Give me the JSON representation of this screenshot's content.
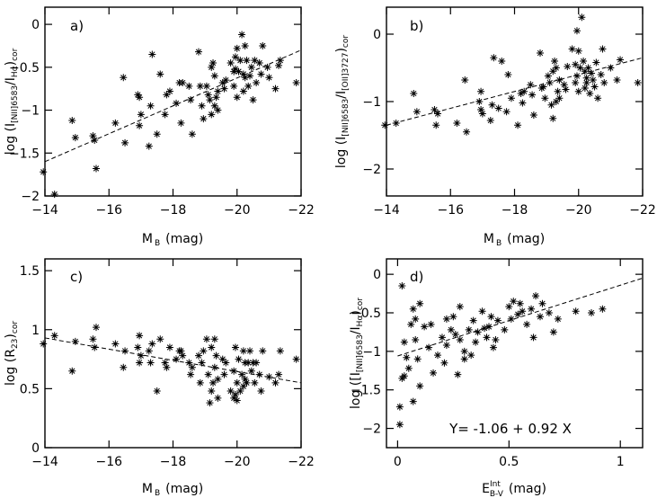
{
  "chart_data": [
    {
      "id": "a",
      "type": "scatter",
      "panel_label": "a)",
      "xlabel": "M_B (mag)",
      "ylabel": "log (I[NII]6583/IHα)cor",
      "xlim": [
        -14,
        -22
      ],
      "ylim": [
        -2,
        0.2
      ],
      "xticks": [
        -14,
        -16,
        -18,
        -20,
        -22
      ],
      "yticks": [
        0,
        -0.5,
        -1,
        -1.5,
        -2
      ],
      "fit_line": [
        [
          -14,
          -1.6
        ],
        [
          -22,
          -0.3
        ]
      ],
      "points": [
        [
          -13.95,
          -1.72
        ],
        [
          -14.3,
          -1.98
        ],
        [
          -14.85,
          -1.12
        ],
        [
          -14.95,
          -1.32
        ],
        [
          -15.5,
          -1.3
        ],
        [
          -15.55,
          -1.35
        ],
        [
          -15.6,
          -1.68
        ],
        [
          -16.2,
          -1.15
        ],
        [
          -16.45,
          -0.62
        ],
        [
          -16.5,
          -1.38
        ],
        [
          -16.9,
          -0.82
        ],
        [
          -16.95,
          -0.85
        ],
        [
          -16.95,
          -1.18
        ],
        [
          -17.0,
          -1.05
        ],
        [
          -17.3,
          -0.95
        ],
        [
          -17.25,
          -1.42
        ],
        [
          -17.35,
          -0.35
        ],
        [
          -17.5,
          -1.28
        ],
        [
          -17.6,
          -0.58
        ],
        [
          -17.75,
          -1.05
        ],
        [
          -17.8,
          -0.82
        ],
        [
          -17.9,
          -0.78
        ],
        [
          -18.1,
          -0.92
        ],
        [
          -18.2,
          -0.68
        ],
        [
          -18.25,
          -1.15
        ],
        [
          -18.3,
          -0.68
        ],
        [
          -18.5,
          -0.72
        ],
        [
          -18.55,
          -0.88
        ],
        [
          -18.6,
          -1.28
        ],
        [
          -18.8,
          -0.32
        ],
        [
          -18.85,
          -0.72
        ],
        [
          -18.9,
          -0.95
        ],
        [
          -18.95,
          -1.1
        ],
        [
          -19.05,
          -0.72
        ],
        [
          -19.1,
          -0.82
        ],
        [
          -19.15,
          -0.88
        ],
        [
          -19.2,
          -0.5
        ],
        [
          -19.2,
          -1.05
        ],
        [
          -19.25,
          -0.45
        ],
        [
          -19.3,
          -0.6
        ],
        [
          -19.3,
          -0.95
        ],
        [
          -19.35,
          -0.85
        ],
        [
          -19.4,
          -0.78
        ],
        [
          -19.4,
          -1.0
        ],
        [
          -19.55,
          -0.68
        ],
        [
          -19.6,
          -0.75
        ],
        [
          -19.65,
          -0.65
        ],
        [
          -19.8,
          -0.45
        ],
        [
          -19.9,
          -0.55
        ],
        [
          -19.9,
          -0.72
        ],
        [
          -19.95,
          -0.38
        ],
        [
          -19.95,
          -0.52
        ],
        [
          -20.0,
          -0.28
        ],
        [
          -20.0,
          -0.85
        ],
        [
          -20.05,
          -0.55
        ],
        [
          -20.1,
          -0.42
        ],
        [
          -20.15,
          -0.12
        ],
        [
          -20.2,
          -0.58
        ],
        [
          -20.2,
          -0.78
        ],
        [
          -20.25,
          -0.62
        ],
        [
          -20.25,
          -0.25
        ],
        [
          -20.3,
          -0.42
        ],
        [
          -20.35,
          -0.72
        ],
        [
          -20.4,
          -0.6
        ],
        [
          -20.45,
          -0.5
        ],
        [
          -20.5,
          -0.88
        ],
        [
          -20.55,
          -0.42
        ],
        [
          -20.6,
          -0.68
        ],
        [
          -20.7,
          -0.45
        ],
        [
          -20.75,
          -0.58
        ],
        [
          -20.8,
          -0.25
        ],
        [
          -20.95,
          -0.5
        ],
        [
          -21.0,
          -0.62
        ],
        [
          -21.2,
          -0.75
        ],
        [
          -21.3,
          -0.48
        ],
        [
          -21.35,
          -0.42
        ],
        [
          -21.85,
          -0.68
        ]
      ]
    },
    {
      "id": "b",
      "type": "scatter",
      "panel_label": "b)",
      "xlabel": "M_B (mag)",
      "ylabel": "log (I[NII]6583/I[OII]3727)cor",
      "xlim": [
        -14,
        -22
      ],
      "ylim": [
        -2.4,
        0.4
      ],
      "xticks": [
        -14,
        -16,
        -18,
        -20,
        -22
      ],
      "yticks": [
        0,
        -1,
        -2
      ],
      "fit_line": [
        [
          -14,
          -1.35
        ],
        [
          -22,
          -0.35
        ]
      ],
      "points": [
        [
          -13.95,
          -1.35
        ],
        [
          -14.3,
          -1.32
        ],
        [
          -14.85,
          -0.88
        ],
        [
          -14.95,
          -1.15
        ],
        [
          -15.5,
          -1.12
        ],
        [
          -15.55,
          -1.35
        ],
        [
          -15.6,
          -1.18
        ],
        [
          -16.2,
          -1.32
        ],
        [
          -16.45,
          -0.68
        ],
        [
          -16.5,
          -1.45
        ],
        [
          -16.9,
          -1.0
        ],
        [
          -16.95,
          -0.85
        ],
        [
          -16.95,
          -1.12
        ],
        [
          -17.0,
          -1.18
        ],
        [
          -17.3,
          -1.05
        ],
        [
          -17.25,
          -1.28
        ],
        [
          -17.35,
          -0.35
        ],
        [
          -17.5,
          -1.1
        ],
        [
          -17.6,
          -0.4
        ],
        [
          -17.75,
          -1.15
        ],
        [
          -17.8,
          -0.6
        ],
        [
          -17.9,
          -0.95
        ],
        [
          -18.1,
          -1.35
        ],
        [
          -18.2,
          -0.88
        ],
        [
          -18.25,
          -1.02
        ],
        [
          -18.3,
          -0.85
        ],
        [
          -18.5,
          -0.75
        ],
        [
          -18.55,
          -0.9
        ],
        [
          -18.6,
          -1.2
        ],
        [
          -18.8,
          -0.28
        ],
        [
          -18.85,
          -0.8
        ],
        [
          -18.9,
          -0.78
        ],
        [
          -18.95,
          -0.95
        ],
        [
          -19.05,
          -0.62
        ],
        [
          -19.1,
          -0.72
        ],
        [
          -19.15,
          -1.05
        ],
        [
          -19.2,
          -0.55
        ],
        [
          -19.2,
          -1.25
        ],
        [
          -19.25,
          -0.4
        ],
        [
          -19.3,
          -0.5
        ],
        [
          -19.3,
          -1.0
        ],
        [
          -19.35,
          -0.85
        ],
        [
          -19.4,
          -0.68
        ],
        [
          -19.4,
          -0.95
        ],
        [
          -19.55,
          -0.75
        ],
        [
          -19.6,
          -0.82
        ],
        [
          -19.65,
          -0.48
        ],
        [
          -19.8,
          -0.22
        ],
        [
          -19.9,
          -0.45
        ],
        [
          -19.9,
          -0.72
        ],
        [
          -19.95,
          0.05
        ],
        [
          -19.95,
          -0.62
        ],
        [
          -20.0,
          -0.25
        ],
        [
          -20.0,
          -0.85
        ],
        [
          -20.05,
          -0.5
        ],
        [
          -20.1,
          0.25
        ],
        [
          -20.15,
          -0.4
        ],
        [
          -20.2,
          -0.55
        ],
        [
          -20.2,
          -0.8
        ],
        [
          -20.25,
          -0.65
        ],
        [
          -20.25,
          -0.72
        ],
        [
          -20.3,
          -0.5
        ],
        [
          -20.35,
          -0.88
        ],
        [
          -20.4,
          -0.58
        ],
        [
          -20.45,
          -0.68
        ],
        [
          -20.5,
          -0.78
        ],
        [
          -20.55,
          -0.42
        ],
        [
          -20.6,
          -0.95
        ],
        [
          -20.7,
          -0.6
        ],
        [
          -20.75,
          -0.22
        ],
        [
          -20.8,
          -0.72
        ],
        [
          -21.0,
          -0.5
        ],
        [
          -21.2,
          -0.68
        ],
        [
          -21.3,
          -0.38
        ],
        [
          -21.85,
          -0.72
        ]
      ]
    },
    {
      "id": "c",
      "type": "scatter",
      "panel_label": "c)",
      "xlabel": "M_B (mag)",
      "ylabel": "log (R23)cor",
      "xlim": [
        -14,
        -22
      ],
      "ylim": [
        0,
        1.6
      ],
      "xticks": [
        -14,
        -16,
        -18,
        -20,
        -22
      ],
      "yticks": [
        0,
        0.5,
        1,
        1.5
      ],
      "fit_line": [
        [
          -14,
          0.93
        ],
        [
          -22,
          0.55
        ]
      ],
      "points": [
        [
          -13.95,
          0.88
        ],
        [
          -14.3,
          0.95
        ],
        [
          -14.85,
          0.65
        ],
        [
          -14.95,
          0.9
        ],
        [
          -15.5,
          0.92
        ],
        [
          -15.55,
          0.85
        ],
        [
          -15.6,
          1.02
        ],
        [
          -16.2,
          0.88
        ],
        [
          -16.45,
          0.68
        ],
        [
          -16.5,
          0.82
        ],
        [
          -16.9,
          0.85
        ],
        [
          -16.95,
          0.72
        ],
        [
          -16.95,
          0.95
        ],
        [
          -17.0,
          0.78
        ],
        [
          -17.3,
          0.72
        ],
        [
          -17.25,
          0.82
        ],
        [
          -17.35,
          0.88
        ],
        [
          -17.5,
          0.48
        ],
        [
          -17.6,
          0.92
        ],
        [
          -17.75,
          0.72
        ],
        [
          -17.8,
          0.68
        ],
        [
          -17.9,
          0.85
        ],
        [
          -18.1,
          0.75
        ],
        [
          -18.2,
          0.82
        ],
        [
          -18.25,
          0.82
        ],
        [
          -18.3,
          0.78
        ],
        [
          -18.5,
          0.72
        ],
        [
          -18.55,
          0.62
        ],
        [
          -18.6,
          0.68
        ],
        [
          -18.8,
          0.78
        ],
        [
          -18.85,
          0.55
        ],
        [
          -18.9,
          0.72
        ],
        [
          -18.95,
          0.82
        ],
        [
          -19.05,
          0.92
        ],
        [
          -19.1,
          0.62
        ],
        [
          -19.15,
          0.38
        ],
        [
          -19.2,
          0.48
        ],
        [
          -19.2,
          0.85
        ],
        [
          -19.25,
          0.55
        ],
        [
          -19.3,
          0.92
        ],
        [
          -19.3,
          0.68
        ],
        [
          -19.35,
          0.78
        ],
        [
          -19.4,
          0.42
        ],
        [
          -19.4,
          0.58
        ],
        [
          -19.55,
          0.75
        ],
        [
          -19.6,
          0.62
        ],
        [
          -19.65,
          0.72
        ],
        [
          -19.8,
          0.48
        ],
        [
          -19.9,
          0.42
        ],
        [
          -19.9,
          0.65
        ],
        [
          -19.95,
          0.45
        ],
        [
          -19.95,
          0.85
        ],
        [
          -20.0,
          0.4
        ],
        [
          -20.0,
          0.55
        ],
        [
          -20.05,
          0.75
        ],
        [
          -20.1,
          0.48
        ],
        [
          -20.15,
          0.62
        ],
        [
          -20.2,
          0.52
        ],
        [
          -20.2,
          0.82
        ],
        [
          -20.25,
          0.58
        ],
        [
          -20.25,
          0.72
        ],
        [
          -20.3,
          0.55
        ],
        [
          -20.35,
          0.72
        ],
        [
          -20.4,
          0.82
        ],
        [
          -20.45,
          0.65
        ],
        [
          -20.5,
          0.72
        ],
        [
          -20.55,
          0.55
        ],
        [
          -20.6,
          0.72
        ],
        [
          -20.7,
          0.62
        ],
        [
          -20.75,
          0.48
        ],
        [
          -20.8,
          0.82
        ],
        [
          -21.0,
          0.6
        ],
        [
          -21.2,
          0.55
        ],
        [
          -21.3,
          0.62
        ],
        [
          -21.35,
          0.82
        ],
        [
          -21.85,
          0.75
        ]
      ]
    },
    {
      "id": "d",
      "type": "scatter",
      "panel_label": "d)",
      "xlabel": "E^Int B-V (mag)",
      "ylabel": "log ([I[NII]6583/IHα)cor",
      "annotation": "Y= -1.06 + 0.92 X",
      "xlim": [
        -0.05,
        1.1
      ],
      "ylim": [
        -2.25,
        0.2
      ],
      "xticks": [
        0,
        0.5,
        1
      ],
      "yticks": [
        0,
        -0.5,
        -1,
        -1.5,
        -2
      ],
      "fit_line": [
        [
          0,
          -1.06
        ],
        [
          1.1,
          -0.05
        ]
      ],
      "points": [
        [
          0.01,
          -1.72
        ],
        [
          0.01,
          -1.95
        ],
        [
          0.02,
          -1.35
        ],
        [
          0.02,
          -0.15
        ],
        [
          0.03,
          -0.88
        ],
        [
          0.03,
          -1.32
        ],
        [
          0.04,
          -1.08
        ],
        [
          0.05,
          -1.22
        ],
        [
          0.06,
          -0.65
        ],
        [
          0.07,
          -1.65
        ],
        [
          0.07,
          -0.45
        ],
        [
          0.08,
          -0.58
        ],
        [
          0.08,
          -0.85
        ],
        [
          0.09,
          -1.1
        ],
        [
          0.1,
          -0.38
        ],
        [
          0.1,
          -1.45
        ],
        [
          0.12,
          -0.68
        ],
        [
          0.14,
          -0.95
        ],
        [
          0.15,
          -0.65
        ],
        [
          0.16,
          -1.28
        ],
        [
          0.18,
          -1.05
        ],
        [
          0.2,
          -0.82
        ],
        [
          0.21,
          -1.15
        ],
        [
          0.22,
          -0.58
        ],
        [
          0.22,
          -0.92
        ],
        [
          0.24,
          -0.72
        ],
        [
          0.25,
          -0.55
        ],
        [
          0.26,
          -0.78
        ],
        [
          0.27,
          -1.3
        ],
        [
          0.28,
          -0.42
        ],
        [
          0.28,
          -0.85
        ],
        [
          0.3,
          -1.0
        ],
        [
          0.3,
          -1.1
        ],
        [
          0.32,
          -0.72
        ],
        [
          0.33,
          -1.05
        ],
        [
          0.34,
          -0.6
        ],
        [
          0.35,
          -0.88
        ],
        [
          0.36,
          -0.75
        ],
        [
          0.38,
          -0.48
        ],
        [
          0.39,
          -0.7
        ],
        [
          0.4,
          -0.82
        ],
        [
          0.41,
          -0.68
        ],
        [
          0.42,
          -0.55
        ],
        [
          0.43,
          -0.95
        ],
        [
          0.44,
          -0.85
        ],
        [
          0.45,
          -0.6
        ],
        [
          0.48,
          -0.72
        ],
        [
          0.5,
          -0.42
        ],
        [
          0.51,
          -0.58
        ],
        [
          0.52,
          -0.35
        ],
        [
          0.54,
          -0.52
        ],
        [
          0.55,
          -0.38
        ],
        [
          0.56,
          -0.48
        ],
        [
          0.58,
          -0.65
        ],
        [
          0.6,
          -0.45
        ],
        [
          0.61,
          -0.82
        ],
        [
          0.62,
          -0.28
        ],
        [
          0.64,
          -0.55
        ],
        [
          0.65,
          -0.38
        ],
        [
          0.68,
          -0.5
        ],
        [
          0.7,
          -0.75
        ],
        [
          0.72,
          -0.58
        ],
        [
          0.8,
          -0.48
        ],
        [
          0.87,
          -0.5
        ],
        [
          0.92,
          -0.45
        ]
      ]
    }
  ]
}
